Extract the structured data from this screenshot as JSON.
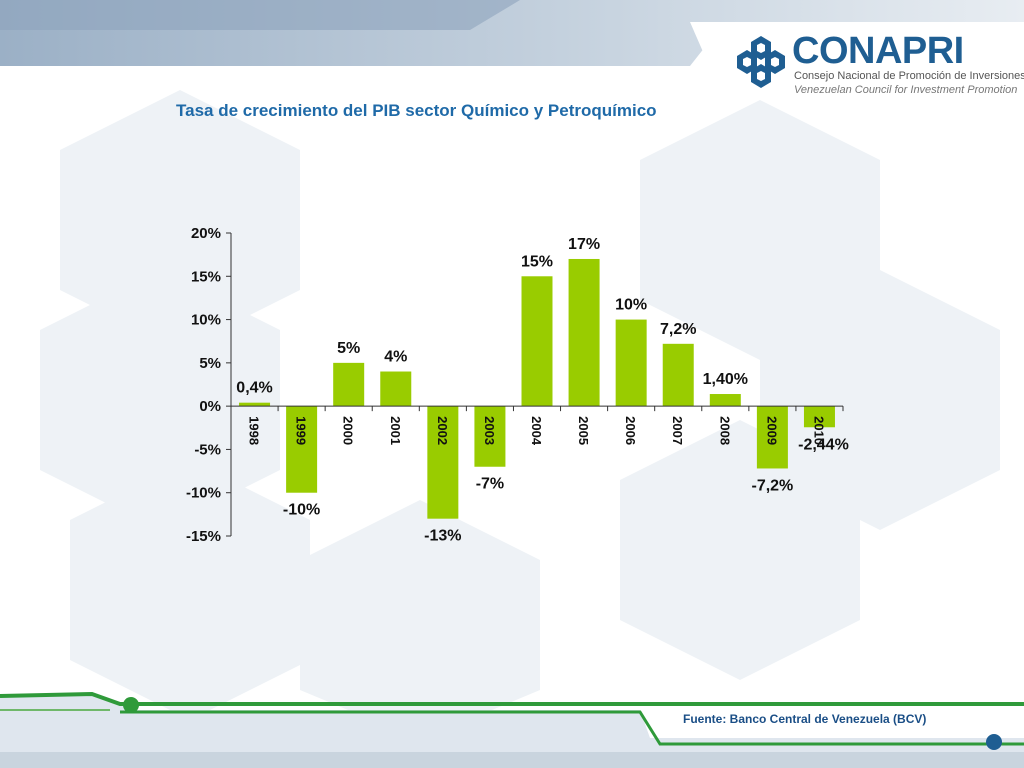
{
  "logo": {
    "name": "CONAPRI",
    "subtitle_es": "Consejo Nacional de Promoción de Inversiones",
    "subtitle_en": "Venezuelan Council for Investment Promotion",
    "brand_color": "#1f5e92"
  },
  "footer": {
    "source": "Fuente: Banco Central de Venezuela (BCV)"
  },
  "chart_data": {
    "type": "bar",
    "title": "Tasa de crecimiento del PIB sector Químico y Petroquímico",
    "categories": [
      "1998",
      "1999",
      "2000",
      "2001",
      "2002",
      "2003",
      "2004",
      "2005",
      "2006",
      "2007",
      "2008",
      "2009",
      "2010"
    ],
    "values": [
      0.4,
      -10,
      5,
      4,
      -13,
      -7,
      15,
      17,
      10,
      7.2,
      1.4,
      -7.2,
      -2.44
    ],
    "data_labels": [
      "0,4%",
      "-10%",
      "5%",
      "4%",
      "-13%",
      "-7%",
      "15%",
      "17%",
      "10%",
      "7,2%",
      "1,40%",
      "-7,2%",
      "-2,44%"
    ],
    "yticks": [
      20,
      15,
      10,
      5,
      0,
      -5,
      -10,
      -15
    ],
    "ytick_labels": [
      "20%",
      "15%",
      "10%",
      "5%",
      "0%",
      "-5%",
      "-10%",
      "-15%"
    ],
    "ylim": [
      -15,
      20
    ],
    "bar_color": "#99cc00",
    "grid": false,
    "legend": "none",
    "xlabel": "",
    "ylabel": ""
  }
}
